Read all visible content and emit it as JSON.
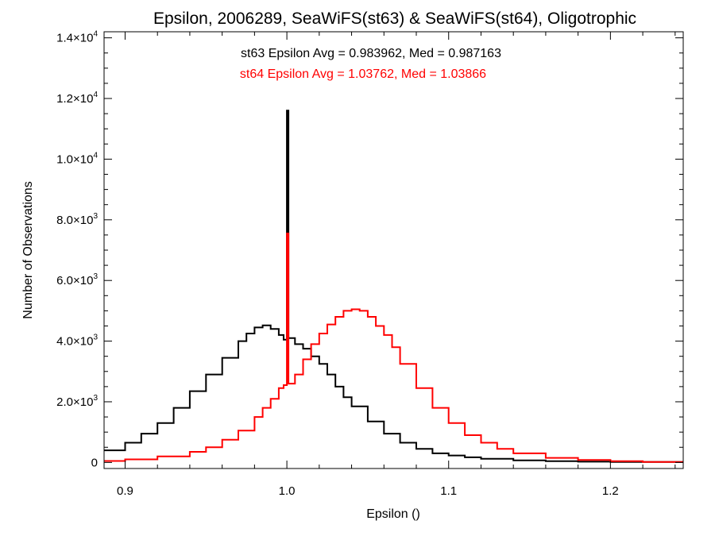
{
  "chart_data": {
    "type": "line",
    "title": "Epsilon, 2006289, SeaWiFS(st63) & SeaWiFS(st64), Oligotrophic",
    "xlabel": "Epsilon ()",
    "ylabel": "Number of Observations",
    "xlim": [
      0.887,
      1.245
    ],
    "ylim": [
      -200,
      14200
    ],
    "grid": false,
    "xticks": [
      0.9,
      1.0,
      1.1,
      1.2
    ],
    "xtick_labels": [
      "0.9",
      "1.0",
      "1.1",
      "1.2"
    ],
    "yticks": [
      {
        "value": 0,
        "mant": "0",
        "exp": ""
      },
      {
        "value": 2000,
        "mant": "2.0×10",
        "exp": "3"
      },
      {
        "value": 4000,
        "mant": "4.0×10",
        "exp": "3"
      },
      {
        "value": 6000,
        "mant": "6.0×10",
        "exp": "3"
      },
      {
        "value": 8000,
        "mant": "8.0×10",
        "exp": "3"
      },
      {
        "value": 10000,
        "mant": "1.0×10",
        "exp": "4"
      },
      {
        "value": 12000,
        "mant": "1.2×10",
        "exp": "4"
      },
      {
        "value": 14000,
        "mant": "1.4×10",
        "exp": "4"
      }
    ],
    "annotations": [
      {
        "text": "st63 Epsilon Avg = 0.983962, Med = 0.987163",
        "color": "#000000"
      },
      {
        "text": "st64 Epsilon Avg = 1.03762, Med = 1.03866",
        "color": "#ff0000"
      }
    ],
    "series": [
      {
        "color": "#000000",
        "type": "step",
        "x": [
          0.887,
          0.9,
          0.91,
          0.92,
          0.93,
          0.94,
          0.95,
          0.96,
          0.97,
          0.975,
          0.98,
          0.985,
          0.99,
          0.995,
          0.998,
          1.0,
          1.001,
          1.005,
          1.01,
          1.015,
          1.02,
          1.025,
          1.03,
          1.035,
          1.04,
          1.05,
          1.06,
          1.07,
          1.08,
          1.09,
          1.1,
          1.11,
          1.12,
          1.14,
          1.16,
          1.18,
          1.2,
          1.245
        ],
        "y": [
          400,
          650,
          950,
          1300,
          1800,
          2350,
          2900,
          3450,
          4000,
          4250,
          4450,
          4520,
          4400,
          4200,
          4050,
          11600,
          4100,
          3900,
          3750,
          3500,
          3250,
          2900,
          2500,
          2150,
          1850,
          1350,
          950,
          650,
          450,
          300,
          230,
          170,
          120,
          70,
          40,
          25,
          15,
          5
        ]
      },
      {
        "color": "#ff0000",
        "type": "step",
        "x": [
          0.887,
          0.9,
          0.92,
          0.94,
          0.95,
          0.96,
          0.97,
          0.98,
          0.985,
          0.99,
          0.995,
          0.998,
          1.0,
          1.001,
          1.005,
          1.01,
          1.015,
          1.02,
          1.025,
          1.03,
          1.035,
          1.04,
          1.045,
          1.05,
          1.055,
          1.06,
          1.065,
          1.07,
          1.08,
          1.09,
          1.1,
          1.11,
          1.12,
          1.13,
          1.14,
          1.16,
          1.18,
          1.2,
          1.22,
          1.245
        ],
        "y": [
          50,
          100,
          200,
          350,
          500,
          750,
          1050,
          1500,
          1800,
          2100,
          2450,
          2550,
          7550,
          2600,
          2900,
          3400,
          3900,
          4250,
          4550,
          4800,
          5000,
          5050,
          5000,
          4800,
          4500,
          4200,
          3800,
          3250,
          2450,
          1800,
          1300,
          900,
          650,
          450,
          300,
          150,
          80,
          40,
          15,
          5
        ]
      }
    ]
  }
}
